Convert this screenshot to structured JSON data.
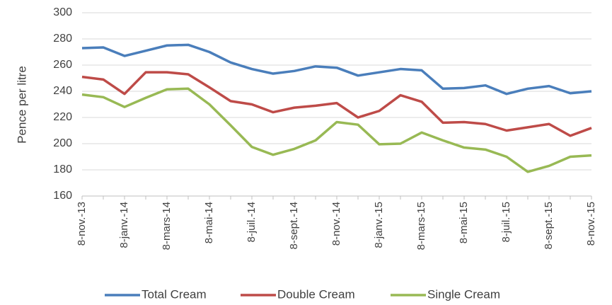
{
  "chart_data": {
    "type": "line",
    "y_label": "Pence per litre",
    "categories": [
      "8-nov.-13",
      null,
      "8-janv.-14",
      null,
      "8-mars-14",
      null,
      "8-mai-14",
      null,
      "8-juil.-14",
      null,
      "8-sept.-14",
      null,
      "8-nov.-14",
      null,
      "8-janv.-15",
      null,
      "8-mars-15",
      null,
      "8-mai-15",
      null,
      "8-juil.-15",
      null,
      "8-sept.-15",
      null,
      "8-nov.-15"
    ],
    "series": [
      {
        "name": "Total Cream",
        "color": "#4a7ebb",
        "values": [
          273,
          273.5,
          267,
          271,
          275,
          275.5,
          270,
          262,
          257,
          253.5,
          255.5,
          259,
          258,
          252,
          254.5,
          257,
          256,
          242,
          242.5,
          244.5,
          238,
          242,
          244,
          238.5,
          240
        ]
      },
      {
        "name": "Double Cream",
        "color": "#be4b48",
        "values": [
          251,
          249,
          238,
          254.5,
          254.5,
          253,
          243,
          232.5,
          230,
          224,
          227.5,
          229,
          231,
          220,
          225,
          237,
          232,
          216,
          216.5,
          215,
          210,
          212.5,
          215,
          206,
          212
        ]
      },
      {
        "name": "Single Cream",
        "color": "#98b954",
        "values": [
          237.5,
          235.5,
          228,
          235,
          241.5,
          242,
          230,
          214,
          197.5,
          191.5,
          196,
          202.5,
          216.5,
          214.5,
          199.5,
          200,
          208.5,
          202.5,
          197,
          195.5,
          190,
          178.5,
          183,
          190,
          191
        ]
      }
    ],
    "ylim": [
      160,
      300
    ],
    "yticks": [
      160,
      180,
      200,
      220,
      240,
      260,
      280,
      300
    ],
    "grid": true
  }
}
